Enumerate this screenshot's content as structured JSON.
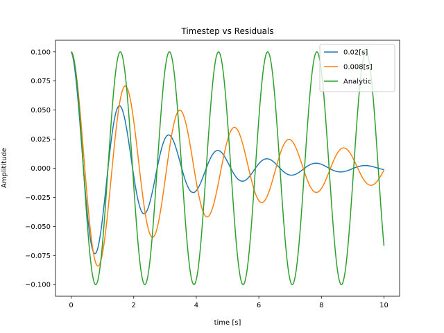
{
  "chart_data": {
    "type": "line",
    "title": "Timestep vs Residuals",
    "xlabel": "time [s]",
    "ylabel": "Amplititude",
    "xlim": [
      -0.5,
      10.5
    ],
    "ylim": [
      -0.11,
      0.11
    ],
    "xticks": [
      0,
      2,
      4,
      6,
      8,
      10
    ],
    "xtick_labels": [
      "0",
      "2",
      "4",
      "6",
      "8",
      "10"
    ],
    "yticks": [
      -0.1,
      -0.075,
      -0.05,
      -0.025,
      0.0,
      0.025,
      0.05,
      0.075,
      0.1
    ],
    "ytick_labels": [
      "−0.100",
      "−0.075",
      "−0.050",
      "−0.025",
      "0.000",
      "0.025",
      "0.050",
      "0.075",
      "0.100"
    ],
    "grid": false,
    "legend_position": "top-right",
    "x_range": [
      0,
      10
    ],
    "series": [
      {
        "name": "0.02[s]",
        "color": "#1f77b4",
        "amplitude": 0.1,
        "omega": 4.0,
        "decay": 0.4
      },
      {
        "name": "0.008[s]",
        "color": "#ff7f0e",
        "amplitude": 0.1,
        "omega": 3.6,
        "decay": 0.2
      },
      {
        "name": "Analytic",
        "color": "#2ca02c",
        "amplitude": 0.1,
        "omega": 4.0,
        "decay": 0.0
      }
    ]
  }
}
